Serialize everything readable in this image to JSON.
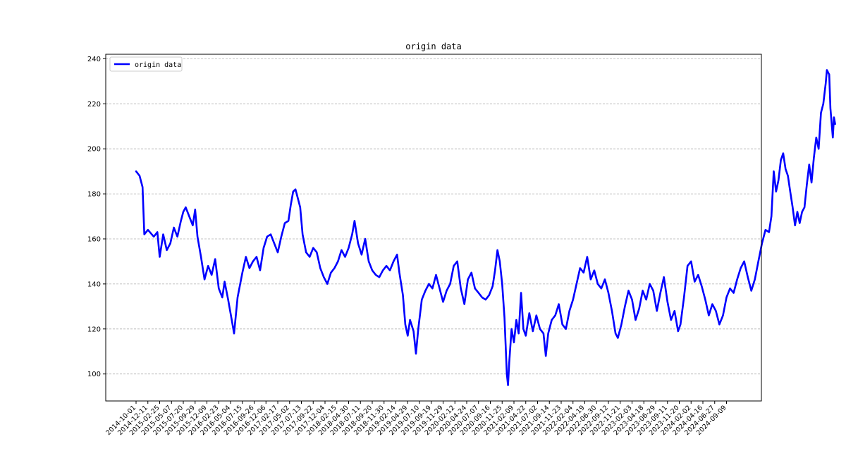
{
  "chart_data": {
    "type": "line",
    "title": "origin data",
    "xlabel": "",
    "ylabel": "",
    "ylim": [
      88,
      242
    ],
    "y_ticks": [
      100,
      120,
      140,
      160,
      180,
      200,
      220,
      240
    ],
    "grid": "horizontal dashed",
    "legend_placement": "top-left",
    "x_ticks": [
      "2014-10-01",
      "2014-12-11",
      "2015-02-25",
      "2015-05-07",
      "2015-07-20",
      "2015-09-29",
      "2015-12-09",
      "2016-02-23",
      "2016-05-04",
      "2016-07-15",
      "2016-09-26",
      "2016-12-06",
      "2017-02-17",
      "2017-05-02",
      "2017-07-13",
      "2017-09-22",
      "2017-12-04",
      "2018-02-15",
      "2018-04-30",
      "2018-07-11",
      "2018-09-20",
      "2018-11-30",
      "2019-02-14",
      "2019-04-29",
      "2019-07-10",
      "2019-09-19",
      "2019-11-29",
      "2020-02-12",
      "2020-04-24",
      "2020-07-07",
      "2020-09-16",
      "2020-11-25",
      "2021-02-09",
      "2021-04-22",
      "2021-07-02",
      "2021-09-14",
      "2021-11-23",
      "2022-02-04",
      "2022-04-19",
      "2022-06-30",
      "2022-09-12",
      "2022-11-21",
      "2023-02-03",
      "2023-04-18",
      "2023-06-29",
      "2023-09-11",
      "2023-11-20",
      "2024-02-02",
      "2024-04-16",
      "2024-06-27",
      "2024-09-09"
    ],
    "series": [
      {
        "name": "origin data",
        "color": "#0000ff",
        "points": [
          [
            0.0,
            190
          ],
          [
            0.3,
            188
          ],
          [
            0.55,
            183
          ],
          [
            0.7,
            162
          ],
          [
            1.0,
            164
          ],
          [
            1.5,
            161
          ],
          [
            1.8,
            163
          ],
          [
            2.0,
            152
          ],
          [
            2.3,
            162
          ],
          [
            2.6,
            155
          ],
          [
            2.9,
            158
          ],
          [
            3.2,
            165
          ],
          [
            3.5,
            161
          ],
          [
            3.8,
            168
          ],
          [
            4.0,
            172
          ],
          [
            4.2,
            174
          ],
          [
            4.5,
            170
          ],
          [
            4.8,
            166
          ],
          [
            5.0,
            173
          ],
          [
            5.2,
            161
          ],
          [
            5.5,
            152
          ],
          [
            5.8,
            142
          ],
          [
            6.1,
            148
          ],
          [
            6.4,
            144
          ],
          [
            6.7,
            151
          ],
          [
            7.0,
            138
          ],
          [
            7.3,
            134
          ],
          [
            7.5,
            141
          ],
          [
            7.8,
            133
          ],
          [
            8.1,
            124
          ],
          [
            8.3,
            118
          ],
          [
            8.6,
            134
          ],
          [
            9.0,
            145
          ],
          [
            9.3,
            152
          ],
          [
            9.6,
            147
          ],
          [
            9.9,
            150
          ],
          [
            10.2,
            152
          ],
          [
            10.5,
            146
          ],
          [
            10.8,
            156
          ],
          [
            11.1,
            161
          ],
          [
            11.4,
            162
          ],
          [
            11.7,
            158
          ],
          [
            12.0,
            154
          ],
          [
            12.3,
            161
          ],
          [
            12.6,
            167
          ],
          [
            12.9,
            168
          ],
          [
            13.1,
            175
          ],
          [
            13.3,
            181
          ],
          [
            13.5,
            182
          ],
          [
            13.7,
            178
          ],
          [
            13.9,
            174
          ],
          [
            14.1,
            162
          ],
          [
            14.4,
            154
          ],
          [
            14.7,
            152
          ],
          [
            15.0,
            156
          ],
          [
            15.3,
            154
          ],
          [
            15.6,
            147
          ],
          [
            15.9,
            143
          ],
          [
            16.2,
            140
          ],
          [
            16.5,
            145
          ],
          [
            16.8,
            147
          ],
          [
            17.1,
            150
          ],
          [
            17.4,
            155
          ],
          [
            17.7,
            152
          ],
          [
            18.0,
            156
          ],
          [
            18.3,
            162
          ],
          [
            18.5,
            168
          ],
          [
            18.8,
            158
          ],
          [
            19.1,
            153
          ],
          [
            19.4,
            160
          ],
          [
            19.7,
            150
          ],
          [
            20.0,
            146
          ],
          [
            20.3,
            144
          ],
          [
            20.6,
            143
          ],
          [
            20.9,
            146
          ],
          [
            21.2,
            148
          ],
          [
            21.5,
            146
          ],
          [
            21.8,
            150
          ],
          [
            22.1,
            153
          ],
          [
            22.3,
            145
          ],
          [
            22.6,
            135
          ],
          [
            22.8,
            122
          ],
          [
            23.0,
            117
          ],
          [
            23.2,
            124
          ],
          [
            23.5,
            119
          ],
          [
            23.7,
            109
          ],
          [
            23.9,
            120
          ],
          [
            24.2,
            133
          ],
          [
            24.5,
            137
          ],
          [
            24.8,
            140
          ],
          [
            25.1,
            138
          ],
          [
            25.4,
            144
          ],
          [
            25.7,
            138
          ],
          [
            26.0,
            132
          ],
          [
            26.3,
            137
          ],
          [
            26.6,
            140
          ],
          [
            26.9,
            148
          ],
          [
            27.2,
            150
          ],
          [
            27.5,
            138
          ],
          [
            27.8,
            131
          ],
          [
            28.1,
            142
          ],
          [
            28.4,
            145
          ],
          [
            28.7,
            138
          ],
          [
            29.0,
            136
          ],
          [
            29.3,
            134
          ],
          [
            29.6,
            133
          ],
          [
            29.9,
            135
          ],
          [
            30.2,
            139
          ],
          [
            30.4,
            146
          ],
          [
            30.6,
            155
          ],
          [
            30.8,
            150
          ],
          [
            31.0,
            140
          ],
          [
            31.2,
            125
          ],
          [
            31.4,
            100
          ],
          [
            31.5,
            95
          ],
          [
            31.6,
            105
          ],
          [
            31.8,
            120
          ],
          [
            32.0,
            114
          ],
          [
            32.2,
            124
          ],
          [
            32.4,
            118
          ],
          [
            32.6,
            136
          ],
          [
            32.8,
            120
          ],
          [
            33.0,
            117
          ],
          [
            33.3,
            127
          ],
          [
            33.6,
            119
          ],
          [
            33.9,
            126
          ],
          [
            34.2,
            120
          ],
          [
            34.5,
            118
          ],
          [
            34.7,
            108
          ],
          [
            34.9,
            118
          ],
          [
            35.2,
            124
          ],
          [
            35.5,
            126
          ],
          [
            35.8,
            131
          ],
          [
            36.1,
            122
          ],
          [
            36.4,
            120
          ],
          [
            36.7,
            128
          ],
          [
            37.0,
            133
          ],
          [
            37.3,
            140
          ],
          [
            37.6,
            147
          ],
          [
            37.9,
            145
          ],
          [
            38.2,
            152
          ],
          [
            38.5,
            142
          ],
          [
            38.8,
            146
          ],
          [
            39.1,
            140
          ],
          [
            39.4,
            138
          ],
          [
            39.7,
            142
          ],
          [
            40.0,
            136
          ],
          [
            40.3,
            128
          ],
          [
            40.6,
            118
          ],
          [
            40.8,
            116
          ],
          [
            41.1,
            122
          ],
          [
            41.4,
            130
          ],
          [
            41.7,
            137
          ],
          [
            42.0,
            133
          ],
          [
            42.3,
            124
          ],
          [
            42.6,
            129
          ],
          [
            42.9,
            137
          ],
          [
            43.2,
            133
          ],
          [
            43.5,
            140
          ],
          [
            43.8,
            137
          ],
          [
            44.1,
            128
          ],
          [
            44.4,
            136
          ],
          [
            44.7,
            143
          ],
          [
            45.0,
            132
          ],
          [
            45.3,
            124
          ],
          [
            45.6,
            128
          ],
          [
            45.9,
            119
          ],
          [
            46.1,
            122
          ],
          [
            46.4,
            134
          ],
          [
            46.7,
            148
          ],
          [
            47.0,
            150
          ],
          [
            47.3,
            141
          ],
          [
            47.6,
            144
          ],
          [
            47.9,
            139
          ],
          [
            48.2,
            133
          ],
          [
            48.5,
            126
          ],
          [
            48.8,
            131
          ],
          [
            49.1,
            128
          ],
          [
            49.4,
            122
          ],
          [
            49.7,
            126
          ],
          [
            50.0,
            134
          ],
          [
            50.3,
            138
          ],
          [
            50.6,
            136
          ],
          [
            50.9,
            142
          ],
          [
            51.2,
            147
          ],
          [
            51.5,
            150
          ],
          [
            51.8,
            143
          ],
          [
            52.1,
            137
          ],
          [
            52.4,
            142
          ],
          [
            52.7,
            150
          ],
          [
            53.0,
            158
          ],
          [
            53.3,
            164
          ],
          [
            53.6,
            163
          ],
          [
            53.8,
            170
          ],
          [
            54.0,
            190
          ],
          [
            54.2,
            181
          ],
          [
            54.4,
            186
          ],
          [
            54.6,
            195
          ],
          [
            54.8,
            198
          ],
          [
            55.0,
            191
          ],
          [
            55.2,
            188
          ],
          [
            55.4,
            181
          ],
          [
            55.6,
            174
          ],
          [
            55.8,
            166
          ],
          [
            56.0,
            172
          ],
          [
            56.2,
            167
          ],
          [
            56.4,
            172
          ],
          [
            56.6,
            174
          ],
          [
            56.8,
            184
          ],
          [
            57.0,
            193
          ],
          [
            57.2,
            185
          ],
          [
            57.4,
            196
          ],
          [
            57.6,
            205
          ],
          [
            57.8,
            200
          ],
          [
            58.0,
            216
          ],
          [
            58.2,
            220
          ],
          [
            58.4,
            229
          ],
          [
            58.5,
            235
          ],
          [
            58.7,
            233
          ],
          [
            58.8,
            218
          ],
          [
            59.0,
            205
          ],
          [
            59.1,
            214
          ],
          [
            59.2,
            211
          ]
        ]
      }
    ]
  }
}
